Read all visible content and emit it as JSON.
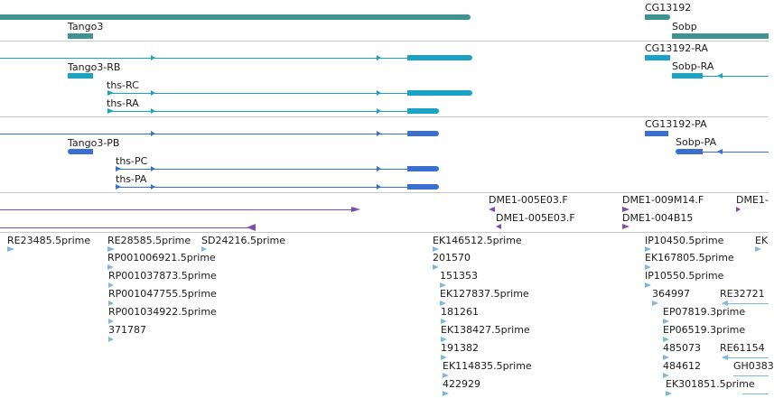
{
  "colors": {
    "gene": "#3f9491",
    "mrna_a": "#1aa3c4",
    "mrna_b": "#3a6fd0",
    "clone": "#7a4fb0",
    "est": "#7fb8df",
    "separator": "#c8c8c8"
  },
  "gene_track": {
    "labels": {
      "tango3": "Tango3",
      "cg13192": "CG13192",
      "sobp": "Sobp"
    }
  },
  "transcripts_ra": {
    "labels": {
      "tango3_rb": "Tango3-RB",
      "ths_rc": "ths-RC",
      "ths_ra": "ths-RA",
      "cg13192_ra": "CG13192-RA",
      "sobp_ra": "Sobp-RA"
    }
  },
  "transcripts_pa": {
    "labels": {
      "tango3_pb": "Tango3-PB",
      "ths_pc": "ths-PC",
      "ths_pa": "ths-PA",
      "cg13192_pa": "CG13192-PA",
      "sobp_pa": "Sobp-PA"
    }
  },
  "clones": {
    "labels": {
      "dme1_005e03_f_a": "DME1-005E03.F",
      "dme1_009m14_f": "DME1-009M14.F",
      "dme1_partial": "DME1-",
      "dme1_005e03_f_b": "DME1-005E03.F",
      "dme1_004b15": "DME1-004B15"
    }
  },
  "ests": {
    "labels": {
      "re23485": "RE23485.5prime",
      "re28585": "RE28585.5prime",
      "sd24216": "SD24216.5prime",
      "rp001006921": "RP001006921.5prime",
      "rp001037873": "RP001037873.5prime",
      "rp001047755": "RP001047755.5prime",
      "rp001034922": "RP001034922.5prime",
      "n371787": "371787",
      "ek146512": "EK146512.5prime",
      "n201570": "201570",
      "n151353": "151353",
      "ek127837": "EK127837.5prime",
      "n181261": "181261",
      "ek138427": "EK138427.5prime",
      "n191382": "191382",
      "ek114835": "EK114835.5prime",
      "n422929": "422929",
      "ip10450": "IP10450.5prime",
      "ek167805": "EK167805.5prime",
      "ip10550": "IP10550.5prime",
      "n364997": "364997",
      "re32721": "RE32721",
      "ep07819": "EP07819.3prime",
      "ep06519": "EP06519.3prime",
      "n485073": "485073",
      "re61154": "RE61154",
      "n484612": "484612",
      "gh0383": "GH0383",
      "ek301851": "EK301851.5prime",
      "ek_partial": "EK"
    }
  }
}
